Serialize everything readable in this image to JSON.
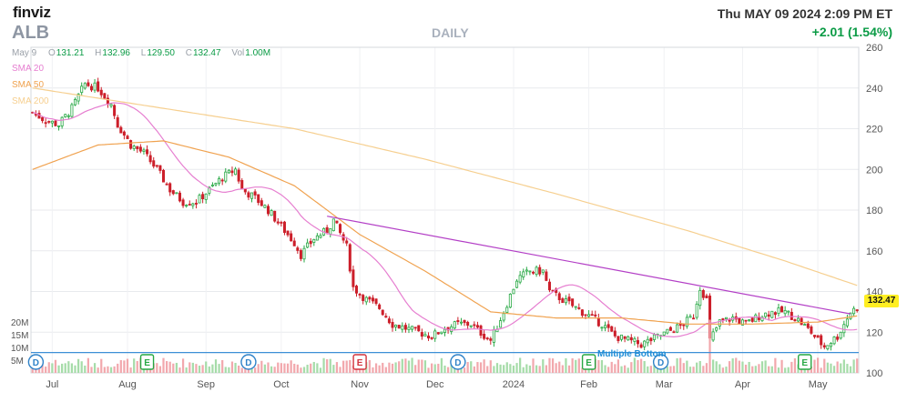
{
  "header": {
    "logo": "finviz",
    "ticker": "ALB",
    "period": "DAILY",
    "datetime": "Thu MAY 09 2024 2:09 PM ET",
    "change": "+2.01 (1.54%)"
  },
  "ohlc": {
    "date": "May 9",
    "open_label": "O",
    "open": "131.21",
    "high_label": "H",
    "high": "132.96",
    "low_label": "L",
    "low": "129.50",
    "close_label": "C",
    "close": "132.47",
    "vol_label": "Vol",
    "volume": "1.00M"
  },
  "legend": {
    "sma20": "SMA 20",
    "sma50": "SMA 50",
    "sma200": "SMA 200"
  },
  "last_price_label": "132.47",
  "pattern_label": "Multiple Bottom",
  "colors": {
    "up": "#27a844",
    "down": "#cc1f2a",
    "sma20": "#e67ed0",
    "sma50": "#f0a24f",
    "sma200": "#f6cf8f",
    "trendline": "#b33fc6",
    "support": "#3d8fd6",
    "vol_up": "#a6dca9",
    "vol_down": "#f2a8ad",
    "event_earnings": "#27a844",
    "event_dividend": "#2f82c8",
    "event_earnings_red": "#d2333d"
  },
  "chart_data": {
    "type": "candlestick",
    "x_axis_labels": [
      "Jul",
      "Aug",
      "Sep",
      "Oct",
      "Nov",
      "Dec",
      "2024",
      "Feb",
      "Mar",
      "Apr",
      "May"
    ],
    "y_ticks": [
      100,
      120,
      140,
      160,
      180,
      200,
      220,
      240,
      260
    ],
    "ylim": [
      100,
      260
    ],
    "volume_ticks": [
      "20M",
      "15M",
      "10M",
      "5M"
    ],
    "volume_tick_values": [
      20,
      15,
      10,
      5
    ],
    "volume_max_m": 25,
    "grid": true,
    "price_anchors": [
      [
        0,
        228
      ],
      [
        4,
        224
      ],
      [
        8,
        222
      ],
      [
        12,
        230
      ],
      [
        16,
        242
      ],
      [
        20,
        240
      ],
      [
        24,
        232
      ],
      [
        26,
        222
      ],
      [
        30,
        212
      ],
      [
        34,
        208
      ],
      [
        38,
        200
      ],
      [
        42,
        190
      ],
      [
        46,
        184
      ],
      [
        50,
        184
      ],
      [
        54,
        190
      ],
      [
        58,
        196
      ],
      [
        62,
        200
      ],
      [
        64,
        190
      ],
      [
        68,
        186
      ],
      [
        72,
        180
      ],
      [
        76,
        172
      ],
      [
        80,
        164
      ],
      [
        82,
        158
      ],
      [
        86,
        166
      ],
      [
        90,
        170
      ],
      [
        92,
        175
      ],
      [
        96,
        162
      ],
      [
        98,
        142
      ],
      [
        102,
        136
      ],
      [
        106,
        132
      ],
      [
        110,
        124
      ],
      [
        114,
        122
      ],
      [
        118,
        120
      ],
      [
        122,
        118
      ],
      [
        126,
        122
      ],
      [
        130,
        124
      ],
      [
        134,
        124
      ],
      [
        136,
        121
      ],
      [
        140,
        116
      ],
      [
        144,
        130
      ],
      [
        148,
        146
      ],
      [
        152,
        150
      ],
      [
        156,
        150
      ],
      [
        158,
        140
      ],
      [
        162,
        136
      ],
      [
        166,
        132
      ],
      [
        170,
        128
      ],
      [
        174,
        124
      ],
      [
        178,
        118
      ],
      [
        182,
        116
      ],
      [
        186,
        114
      ],
      [
        190,
        117
      ],
      [
        194,
        120
      ],
      [
        198,
        123
      ],
      [
        202,
        128
      ],
      [
        204,
        142
      ],
      [
        206,
        136
      ],
      [
        207,
        116
      ],
      [
        210,
        125
      ],
      [
        214,
        127
      ],
      [
        218,
        124
      ],
      [
        222,
        128
      ],
      [
        226,
        130
      ],
      [
        230,
        130
      ],
      [
        234,
        126
      ],
      [
        238,
        120
      ],
      [
        240,
        116
      ],
      [
        242,
        113
      ],
      [
        246,
        118
      ],
      [
        248,
        124
      ],
      [
        250,
        130
      ],
      [
        252,
        132
      ]
    ],
    "candle_count": 253,
    "sma200_anchors": [
      [
        0,
        240
      ],
      [
        40,
        230
      ],
      [
        80,
        220
      ],
      [
        120,
        205
      ],
      [
        160,
        188
      ],
      [
        200,
        170
      ],
      [
        230,
        155
      ],
      [
        252,
        143
      ]
    ],
    "sma50_anchors": [
      [
        0,
        200
      ],
      [
        20,
        212
      ],
      [
        40,
        214
      ],
      [
        60,
        206
      ],
      [
        80,
        192
      ],
      [
        100,
        168
      ],
      [
        120,
        150
      ],
      [
        140,
        130
      ],
      [
        160,
        127
      ],
      [
        180,
        127
      ],
      [
        200,
        124
      ],
      [
        220,
        124
      ],
      [
        240,
        125
      ],
      [
        252,
        128
      ]
    ],
    "trendline": {
      "from": [
        90,
        177
      ],
      "to": [
        250,
        129
      ]
    },
    "support_level": 110,
    "events": [
      {
        "pos": 1,
        "type": "D"
      },
      {
        "pos": 35,
        "type": "E"
      },
      {
        "pos": 66,
        "type": "D"
      },
      {
        "pos": 100,
        "type": "E"
      },
      {
        "pos": 130,
        "type": "D"
      },
      {
        "pos": 170,
        "type": "E"
      },
      {
        "pos": 192,
        "type": "D"
      },
      {
        "pos": 236,
        "type": "E"
      }
    ]
  }
}
